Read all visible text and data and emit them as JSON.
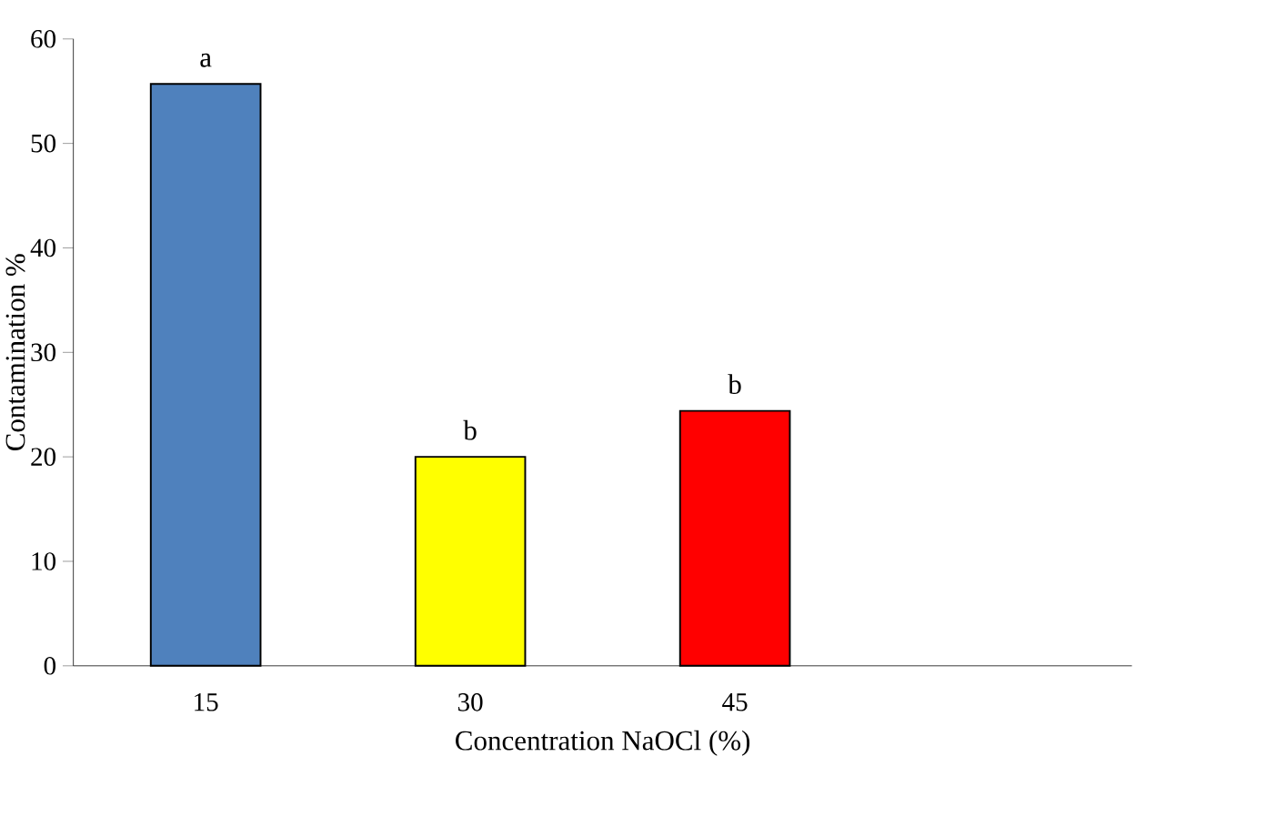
{
  "chart_data": {
    "type": "bar",
    "xlabel": "Concentration NaOCl (%)",
    "ylabel": "Contamination %",
    "categories": [
      "15",
      "30",
      "45",
      null
    ],
    "values": [
      55.7,
      20.0,
      24.4,
      null
    ],
    "colors": [
      "#4f81bd",
      "#ffff00",
      "#ff0000",
      null
    ],
    "ylim": [
      0,
      60
    ],
    "yticks": [
      0,
      10,
      20,
      30,
      40,
      50,
      60
    ],
    "grid": false,
    "annotations": [
      {
        "text": "a",
        "x": "15",
        "y": 55.7
      },
      {
        "text": "b",
        "x": "30",
        "y": 20.0
      },
      {
        "text": "b",
        "x": "45",
        "y": 24.4
      }
    ]
  }
}
